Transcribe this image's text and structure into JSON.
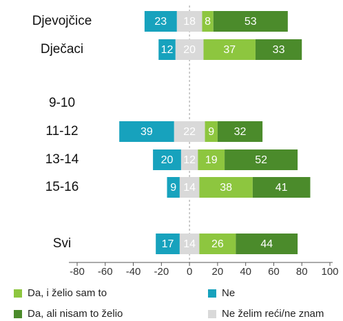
{
  "chart_data": {
    "type": "diverging_bar",
    "categories": [
      "Djevojčice",
      "Dječaci",
      "9-10",
      "11-12",
      "13-14",
      "15-16",
      "Svi"
    ],
    "series": [
      {
        "name": "Da, i želio sam to",
        "color": "#8dc63f",
        "values": [
          8,
          37,
          null,
          9,
          19,
          38,
          26
        ]
      },
      {
        "name": "Ne",
        "color": "#17a2bd",
        "values": [
          23,
          12,
          null,
          39,
          20,
          9,
          17
        ]
      },
      {
        "name": "Da, ali nisam to želio",
        "color": "#4b8b2b",
        "values": [
          53,
          33,
          null,
          32,
          52,
          41,
          44
        ]
      },
      {
        "name": "Ne želim reći/ne znam",
        "color": "#d9d9d9",
        "values": [
          18,
          20,
          null,
          22,
          12,
          14,
          14
        ]
      }
    ],
    "xlim": [
      -80,
      100
    ],
    "xticks": [
      -80,
      -60,
      -40,
      -20,
      0,
      20,
      40,
      60,
      80,
      100
    ],
    "legend": "bottom"
  }
}
